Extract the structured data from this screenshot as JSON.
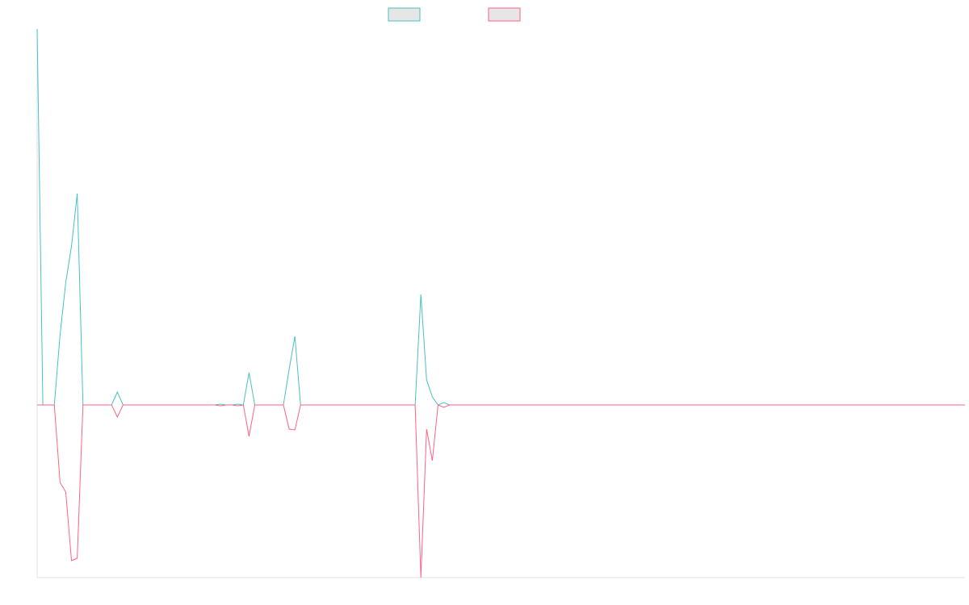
{
  "chart_data": {
    "type": "line",
    "series": [
      {
        "color": "#4bc0c0",
        "values": [
          466,
          0,
          0,
          0,
          87,
          152,
          197,
          262,
          0,
          0,
          0,
          0,
          0,
          0,
          16,
          0,
          0,
          0,
          0,
          0,
          0,
          0,
          0,
          0,
          0,
          0,
          0,
          0,
          0,
          0,
          0,
          0,
          1,
          0,
          0,
          1,
          0,
          40,
          0,
          0,
          0,
          0,
          0,
          0,
          44,
          85,
          0,
          0,
          0,
          0,
          0,
          0,
          0,
          0,
          0,
          0,
          0,
          0,
          0,
          0,
          0,
          0,
          0,
          0,
          0,
          0,
          0,
          137,
          31,
          10,
          0,
          3,
          0,
          0,
          0,
          0,
          0,
          0,
          0,
          0,
          0,
          0,
          0,
          0,
          0,
          0,
          0,
          0,
          0,
          0,
          0,
          0,
          0,
          0,
          0,
          0,
          0,
          0,
          0,
          0,
          0,
          0,
          0,
          0,
          0,
          0,
          0,
          0,
          0,
          0,
          0,
          0,
          0,
          0,
          0,
          0,
          0,
          0,
          0,
          0,
          0,
          0,
          0,
          0,
          0,
          0,
          0,
          0,
          0,
          0,
          0,
          0,
          0,
          0,
          0,
          0,
          0,
          0,
          0,
          0,
          0,
          0,
          0,
          0,
          0,
          0,
          0,
          0,
          0,
          0,
          0,
          0,
          0,
          0,
          0,
          0,
          0,
          0,
          0,
          0,
          0,
          0,
          0
        ]
      },
      {
        "color": "#ff6384",
        "values": [
          0,
          0,
          0,
          0,
          -96,
          -108,
          -193,
          -190,
          0,
          0,
          0,
          0,
          0,
          0,
          -15,
          0,
          0,
          0,
          0,
          0,
          0,
          0,
          0,
          0,
          0,
          0,
          0,
          0,
          0,
          0,
          0,
          0,
          -1,
          0,
          0,
          -1,
          0,
          -39,
          0,
          0,
          0,
          0,
          0,
          0,
          -30,
          -31,
          0,
          0,
          0,
          0,
          0,
          0,
          0,
          0,
          0,
          0,
          0,
          0,
          0,
          0,
          0,
          0,
          0,
          0,
          0,
          0,
          0,
          -214,
          -30,
          -69,
          0,
          -3,
          0,
          0,
          0,
          0,
          0,
          0,
          0,
          0,
          0,
          0,
          0,
          0,
          0,
          0,
          0,
          0,
          0,
          0,
          0,
          0,
          0,
          0,
          0,
          0,
          0,
          0,
          0,
          0,
          0,
          0,
          0,
          0,
          0,
          0,
          0,
          0,
          0,
          0,
          0,
          0,
          0,
          0,
          0,
          0,
          0,
          0,
          0,
          0,
          0,
          0,
          0,
          0,
          0,
          0,
          0,
          0,
          0,
          0,
          0,
          0,
          0,
          0,
          0,
          0,
          0,
          0,
          0,
          0,
          0,
          0,
          0,
          0,
          0,
          0,
          0,
          0,
          0,
          0,
          0,
          0,
          0,
          0,
          0,
          0,
          0,
          0,
          0,
          0,
          0,
          0,
          0
        ]
      }
    ],
    "ylim": [
      -214,
      466
    ]
  }
}
